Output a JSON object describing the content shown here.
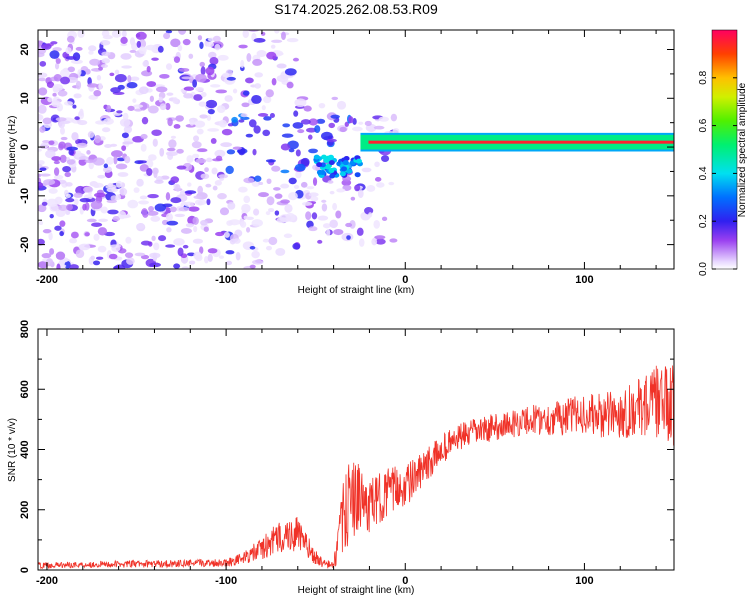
{
  "title": "S174.2025.262.08.53.R09",
  "chart_data": [
    {
      "type": "heatmap",
      "title": "S174.2025.262.08.53.R09",
      "xlabel": "Height of straight line (km)",
      "ylabel": "Frequency (Hz)",
      "xlim": [
        -205,
        150
      ],
      "ylim": [
        -25,
        24
      ],
      "xticks": [
        -200,
        -100,
        0,
        100
      ],
      "yticks": [
        -20,
        -10,
        0,
        10,
        20
      ],
      "colorbar": {
        "label": "Normalized spectral amplitude",
        "range": [
          0,
          1
        ],
        "ticks": [
          0.0,
          0.2,
          0.4,
          0.6,
          0.8
        ]
      },
      "features": {
        "noise_region_km": [
          -205,
          -25
        ],
        "tone_region_km": [
          -25,
          150
        ],
        "tone_frequency_hz": 1,
        "tone_amplitude": 0.95,
        "dip_near_km": -40,
        "dip_frequency_hz": -4
      }
    },
    {
      "type": "line",
      "xlabel": "Height of straight line (km)",
      "ylabel": "SNR (10 * v/v)",
      "xlim": [
        -205,
        150
      ],
      "ylim": [
        0,
        800
      ],
      "xticks": [
        -200,
        -100,
        0,
        100
      ],
      "yticks": [
        0,
        200,
        400,
        600,
        800
      ],
      "series": [
        {
          "name": "SNR",
          "color": "#f03228",
          "x": [
            -205,
            -180,
            -150,
            -120,
            -100,
            -90,
            -80,
            -70,
            -60,
            -55,
            -50,
            -45,
            -40,
            -35,
            -30,
            -25,
            -20,
            -10,
            0,
            10,
            20,
            30,
            40,
            50,
            60,
            70,
            80,
            90,
            100,
            110,
            120,
            130,
            140,
            150
          ],
          "y": [
            15,
            18,
            20,
            22,
            25,
            40,
            70,
            110,
            120,
            80,
            40,
            20,
            15,
            160,
            250,
            230,
            210,
            260,
            280,
            330,
            400,
            440,
            460,
            475,
            485,
            500,
            500,
            510,
            520,
            510,
            520,
            540,
            560,
            540
          ],
          "noise_amplitude": [
            10,
            10,
            12,
            12,
            14,
            20,
            40,
            55,
            60,
            40,
            25,
            15,
            15,
            120,
            140,
            110,
            90,
            80,
            70,
            60,
            50,
            45,
            45,
            45,
            45,
            50,
            55,
            60,
            65,
            75,
            85,
            95,
            120,
            140
          ]
        }
      ]
    }
  ]
}
